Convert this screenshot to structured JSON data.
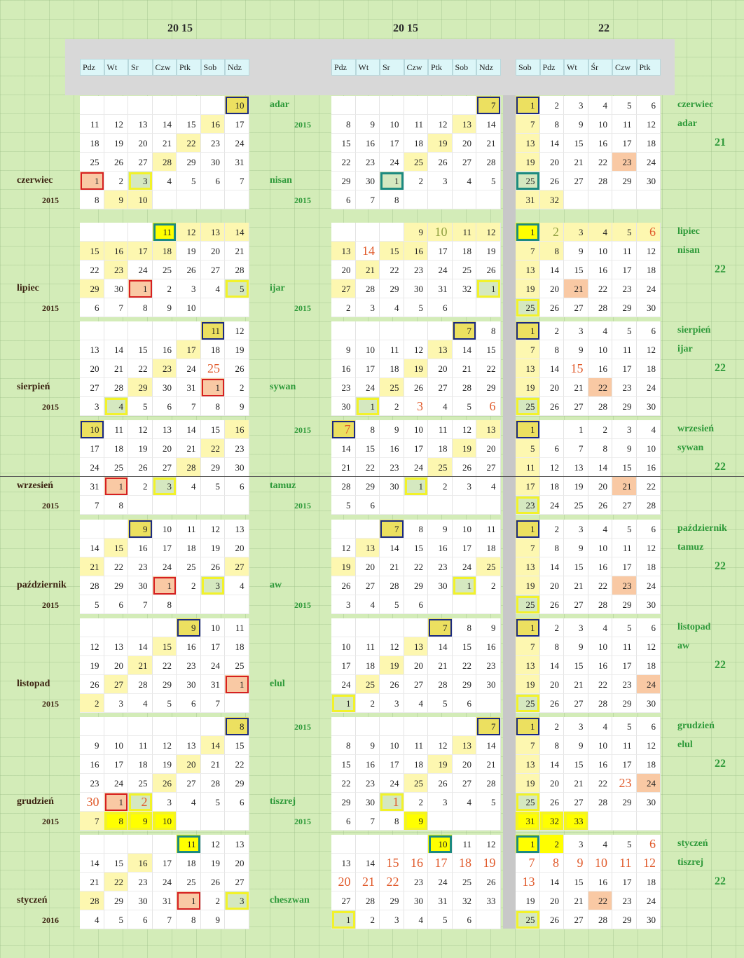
{
  "years": [
    "20 15",
    "20 15",
    "22"
  ],
  "headers": {
    "left": [
      "Pdz",
      "Wt",
      "Sr",
      "Czw",
      "Ptk",
      "Sob",
      "Ndz"
    ],
    "middle": [
      "Pdz",
      "Wt",
      "Sr",
      "Czw",
      "Ptk",
      "Sob",
      "Ndz"
    ],
    "right": [
      "Sob",
      "Pdz",
      "Wt",
      "Śr",
      "Czw",
      "Ptk"
    ]
  },
  "blocks": [
    {
      "month": "czerwiec",
      "year": "2015",
      "heb_label": "adar",
      "heb_year": "2015",
      "heb_label2": "nisan",
      "heb_year2": "2015",
      "right_labels": [
        "czerwiec",
        "adar"
      ],
      "right_num": "21",
      "left": [
        [
          "",
          "",
          "",
          "",
          "",
          "",
          "10"
        ],
        [
          "11",
          "12",
          "13",
          "14",
          "15",
          "16",
          "17"
        ],
        [
          "18",
          "19",
          "20",
          "21",
          "22",
          "23",
          "24"
        ],
        [
          "25",
          "26",
          "27",
          "28",
          "29",
          "30",
          "31"
        ],
        [
          "1",
          "2",
          "3",
          "4",
          "5",
          "6",
          "7"
        ],
        [
          "8",
          "9",
          "10",
          "",
          "",
          "",
          ""
        ]
      ],
      "middle": [
        [
          "",
          "",
          "",
          "",
          "",
          "",
          "7"
        ],
        [
          "8",
          "9",
          "10",
          "11",
          "12",
          "13",
          "14"
        ],
        [
          "15",
          "16",
          "17",
          "18",
          "19",
          "20",
          "21"
        ],
        [
          "22",
          "23",
          "24",
          "25",
          "26",
          "27",
          "28"
        ],
        [
          "29",
          "30",
          "1",
          "2",
          "3",
          "4",
          "5"
        ],
        [
          "6",
          "7",
          "8",
          "",
          "",
          "",
          ""
        ]
      ],
      "right": [
        [
          "1",
          "2",
          "3",
          "4",
          "5",
          "6"
        ],
        [
          "7",
          "8",
          "9",
          "10",
          "11",
          "12"
        ],
        [
          "13",
          "14",
          "15",
          "16",
          "17",
          "18"
        ],
        [
          "19",
          "20",
          "21",
          "22",
          "23",
          "24"
        ],
        [
          "25",
          "26",
          "27",
          "28",
          "29",
          "30"
        ],
        [
          "31",
          "32",
          "",
          "",
          "",
          ""
        ]
      ]
    },
    {
      "month": "lipiec",
      "year": "2015",
      "heb_label": "ijar",
      "heb_year": "2015",
      "right_labels": [
        "lipiec",
        "nisan"
      ],
      "right_num": "22",
      "left": [
        [
          "",
          "",
          "",
          "11",
          "12",
          "13",
          "14"
        ],
        [
          "15",
          "16",
          "17",
          "18",
          "19",
          "20",
          "21"
        ],
        [
          "22",
          "23",
          "24",
          "25",
          "26",
          "27",
          "28"
        ],
        [
          "29",
          "30",
          "1",
          "2",
          "3",
          "4",
          "5"
        ],
        [
          "6",
          "7",
          "8",
          "9",
          "10",
          "",
          ""
        ]
      ],
      "middle": [
        [
          "",
          "",
          "",
          "9",
          "10",
          "11",
          "12"
        ],
        [
          "13",
          "14",
          "15",
          "16",
          "17",
          "18",
          "19"
        ],
        [
          "20",
          "21",
          "22",
          "23",
          "24",
          "25",
          "26"
        ],
        [
          "27",
          "28",
          "29",
          "30",
          "31",
          "32",
          "1"
        ],
        [
          "2",
          "3",
          "4",
          "5",
          "6",
          "",
          ""
        ]
      ],
      "right": [
        [
          "1",
          "2",
          "3",
          "4",
          "5",
          "6"
        ],
        [
          "7",
          "8",
          "9",
          "10",
          "11",
          "12"
        ],
        [
          "13",
          "14",
          "15",
          "16",
          "17",
          "18"
        ],
        [
          "19",
          "20",
          "21",
          "22",
          "23",
          "24"
        ],
        [
          "25",
          "26",
          "27",
          "28",
          "29",
          "30"
        ]
      ]
    },
    {
      "month": "sierpień",
      "year": "2015",
      "heb_label": "sywan",
      "heb_year": "",
      "right_labels": [
        "sierpień",
        "ijar"
      ],
      "right_num": "22",
      "left": [
        [
          "",
          "",
          "",
          "",
          "",
          "11",
          "12"
        ],
        [
          "13",
          "14",
          "15",
          "16",
          "17",
          "18",
          "19"
        ],
        [
          "20",
          "21",
          "22",
          "23",
          "24",
          "25",
          "26"
        ],
        [
          "27",
          "28",
          "29",
          "30",
          "31",
          "1",
          "2"
        ],
        [
          "3",
          "4",
          "5",
          "6",
          "7",
          "8",
          "9"
        ]
      ],
      "middle": [
        [
          "",
          "",
          "",
          "",
          "",
          "7",
          "8"
        ],
        [
          "9",
          "10",
          "11",
          "12",
          "13",
          "14",
          "15"
        ],
        [
          "16",
          "17",
          "18",
          "19",
          "20",
          "21",
          "22"
        ],
        [
          "23",
          "24",
          "25",
          "26",
          "27",
          "28",
          "29"
        ],
        [
          "30",
          "1",
          "2",
          "3",
          "4",
          "5",
          "6"
        ]
      ],
      "right": [
        [
          "1",
          "2",
          "3",
          "4",
          "5",
          "6"
        ],
        [
          "7",
          "8",
          "9",
          "10",
          "11",
          "12"
        ],
        [
          "13",
          "14",
          "15",
          "16",
          "17",
          "18"
        ],
        [
          "19",
          "20",
          "21",
          "22",
          "23",
          "24"
        ],
        [
          "25",
          "26",
          "27",
          "28",
          "29",
          "30"
        ]
      ]
    },
    {
      "month": "wrzesień",
      "year": "2015",
      "heb_label": "tamuz",
      "heb_year": "2015",
      "heb_top_year": "2015",
      "right_labels": [
        "wrzesień",
        "sywan"
      ],
      "right_num": "22",
      "left": [
        [
          "10",
          "11",
          "12",
          "13",
          "14",
          "15",
          "16"
        ],
        [
          "17",
          "18",
          "19",
          "20",
          "21",
          "22",
          "23"
        ],
        [
          "24",
          "25",
          "26",
          "27",
          "28",
          "29",
          "30"
        ],
        [
          "31",
          "1",
          "2",
          "3",
          "4",
          "5",
          "6"
        ],
        [
          "7",
          "8",
          "",
          "",
          "",
          "",
          ""
        ]
      ],
      "middle": [
        [
          "7",
          "8",
          "9",
          "10",
          "11",
          "12",
          "13"
        ],
        [
          "14",
          "15",
          "16",
          "17",
          "18",
          "19",
          "20"
        ],
        [
          "21",
          "22",
          "23",
          "24",
          "25",
          "26",
          "27"
        ],
        [
          "28",
          "29",
          "30",
          "1",
          "2",
          "3",
          "4"
        ],
        [
          "5",
          "6",
          "",
          "",
          "",
          "",
          ""
        ]
      ],
      "right": [
        [
          "1",
          "",
          "1",
          "2",
          "3",
          "4"
        ],
        [
          "5",
          "6",
          "7",
          "8",
          "9",
          "10"
        ],
        [
          "11",
          "12",
          "13",
          "14",
          "15",
          "16"
        ],
        [
          "17",
          "18",
          "19",
          "20",
          "21",
          "22"
        ],
        [
          "23",
          "24",
          "25",
          "26",
          "27",
          "28"
        ]
      ]
    },
    {
      "month": "październik",
      "year": "2015",
      "heb_label": "aw",
      "heb_year": "2015",
      "right_labels": [
        "październik",
        "tamuz"
      ],
      "right_num": "22",
      "left": [
        [
          "",
          "",
          "9",
          "10",
          "11",
          "12",
          "13"
        ],
        [
          "14",
          "15",
          "16",
          "17",
          "18",
          "19",
          "20"
        ],
        [
          "21",
          "22",
          "23",
          "24",
          "25",
          "26",
          "27"
        ],
        [
          "28",
          "29",
          "30",
          "1",
          "2",
          "3",
          "4"
        ],
        [
          "5",
          "6",
          "7",
          "8",
          "",
          "",
          ""
        ]
      ],
      "middle": [
        [
          "",
          "",
          "7",
          "8",
          "9",
          "10",
          "11"
        ],
        [
          "12",
          "13",
          "14",
          "15",
          "16",
          "17",
          "18"
        ],
        [
          "19",
          "20",
          "21",
          "22",
          "23",
          "24",
          "25"
        ],
        [
          "26",
          "27",
          "28",
          "29",
          "30",
          "1",
          "2"
        ],
        [
          "3",
          "4",
          "5",
          "6",
          "",
          "",
          ""
        ]
      ],
      "right": [
        [
          "1",
          "2",
          "3",
          "4",
          "5",
          "6"
        ],
        [
          "7",
          "8",
          "9",
          "10",
          "11",
          "12"
        ],
        [
          "13",
          "14",
          "15",
          "16",
          "17",
          "18"
        ],
        [
          "19",
          "20",
          "21",
          "22",
          "23",
          "24"
        ],
        [
          "25",
          "26",
          "27",
          "28",
          "29",
          "30"
        ]
      ]
    },
    {
      "month": "listopad",
      "year": "2015",
      "heb_label": "elul",
      "heb_year": "",
      "right_labels": [
        "listopad",
        "aw"
      ],
      "right_num": "22",
      "left": [
        [
          "",
          "",
          "",
          "",
          "9",
          "10",
          "11"
        ],
        [
          "12",
          "13",
          "14",
          "15",
          "16",
          "17",
          "18"
        ],
        [
          "19",
          "20",
          "21",
          "22",
          "23",
          "24",
          "25"
        ],
        [
          "26",
          "27",
          "28",
          "29",
          "30",
          "31",
          "1"
        ],
        [
          "2",
          "3",
          "4",
          "5",
          "6",
          "7",
          ""
        ]
      ],
      "middle": [
        [
          "",
          "",
          "",
          "",
          "7",
          "8",
          "9"
        ],
        [
          "10",
          "11",
          "12",
          "13",
          "14",
          "15",
          "16"
        ],
        [
          "17",
          "18",
          "19",
          "20",
          "21",
          "22",
          "23"
        ],
        [
          "24",
          "25",
          "26",
          "27",
          "28",
          "29",
          "30"
        ],
        [
          "1",
          "2",
          "3",
          "4",
          "5",
          "6",
          ""
        ]
      ],
      "right": [
        [
          "1",
          "2",
          "3",
          "4",
          "5",
          "6"
        ],
        [
          "7",
          "8",
          "9",
          "10",
          "11",
          "12"
        ],
        [
          "13",
          "14",
          "15",
          "16",
          "17",
          "18"
        ],
        [
          "19",
          "20",
          "21",
          "22",
          "23",
          "24"
        ],
        [
          "25",
          "26",
          "27",
          "28",
          "29",
          "30"
        ]
      ]
    },
    {
      "month": "grudzień",
      "year": "2015",
      "heb_label": "tiszrej",
      "heb_year": "2015",
      "heb_top_year": "2015",
      "right_labels": [
        "grudzień",
        "elul"
      ],
      "right_num": "22",
      "left": [
        [
          "",
          "",
          "",
          "",
          "",
          "",
          "8"
        ],
        [
          "9",
          "10",
          "11",
          "12",
          "13",
          "14",
          "15"
        ],
        [
          "16",
          "17",
          "18",
          "19",
          "20",
          "21",
          "22"
        ],
        [
          "23",
          "24",
          "25",
          "26",
          "27",
          "28",
          "29"
        ],
        [
          "30",
          "1",
          "2",
          "3",
          "4",
          "5",
          "6"
        ],
        [
          "7",
          "8",
          "9",
          "10",
          "",
          "",
          ""
        ]
      ],
      "middle": [
        [
          "",
          "",
          "",
          "",
          "",
          "",
          "7"
        ],
        [
          "8",
          "9",
          "10",
          "11",
          "12",
          "13",
          "14"
        ],
        [
          "15",
          "16",
          "17",
          "18",
          "19",
          "20",
          "21"
        ],
        [
          "22",
          "23",
          "24",
          "25",
          "26",
          "27",
          "28"
        ],
        [
          "29",
          "30",
          "1",
          "2",
          "3",
          "4",
          "5"
        ],
        [
          "6",
          "7",
          "8",
          "9",
          "",
          "",
          ""
        ]
      ],
      "right": [
        [
          "1",
          "2",
          "3",
          "4",
          "5",
          "6"
        ],
        [
          "7",
          "8",
          "9",
          "10",
          "11",
          "12"
        ],
        [
          "13",
          "14",
          "15",
          "16",
          "17",
          "18"
        ],
        [
          "19",
          "20",
          "21",
          "22",
          "23",
          "24"
        ],
        [
          "25",
          "26",
          "27",
          "28",
          "29",
          "30"
        ],
        [
          "31",
          "32",
          "33",
          "",
          "",
          ""
        ]
      ]
    },
    {
      "month": "styczeń",
      "year": "2016",
      "heb_label": "cheszwan",
      "heb_year": "",
      "right_labels": [
        "styczeń",
        "tiszrej"
      ],
      "right_num": "22",
      "left": [
        [
          "",
          "",
          "",
          "",
          "11",
          "12",
          "13"
        ],
        [
          "14",
          "15",
          "16",
          "17",
          "18",
          "19",
          "20"
        ],
        [
          "21",
          "22",
          "23",
          "24",
          "25",
          "26",
          "27"
        ],
        [
          "28",
          "29",
          "30",
          "31",
          "1",
          "2",
          "3"
        ],
        [
          "4",
          "5",
          "6",
          "7",
          "8",
          "9",
          ""
        ]
      ],
      "middle": [
        [
          "",
          "",
          "",
          "",
          "10",
          "11",
          "12"
        ],
        [
          "13",
          "14",
          "15",
          "16",
          "17",
          "18",
          "19"
        ],
        [
          "20",
          "21",
          "22",
          "23",
          "24",
          "25",
          "26"
        ],
        [
          "27",
          "28",
          "29",
          "30",
          "31",
          "32",
          "33"
        ],
        [
          "1",
          "2",
          "3",
          "4",
          "5",
          "6",
          ""
        ]
      ],
      "right": [
        [
          "1",
          "2",
          "3",
          "4",
          "5",
          "6"
        ],
        [
          "7",
          "8",
          "9",
          "10",
          "11",
          "12"
        ],
        [
          "13",
          "14",
          "15",
          "16",
          "17",
          "18"
        ],
        [
          "19",
          "20",
          "21",
          "22",
          "23",
          "24"
        ],
        [
          "25",
          "26",
          "27",
          "28",
          "29",
          "30"
        ]
      ]
    }
  ]
}
